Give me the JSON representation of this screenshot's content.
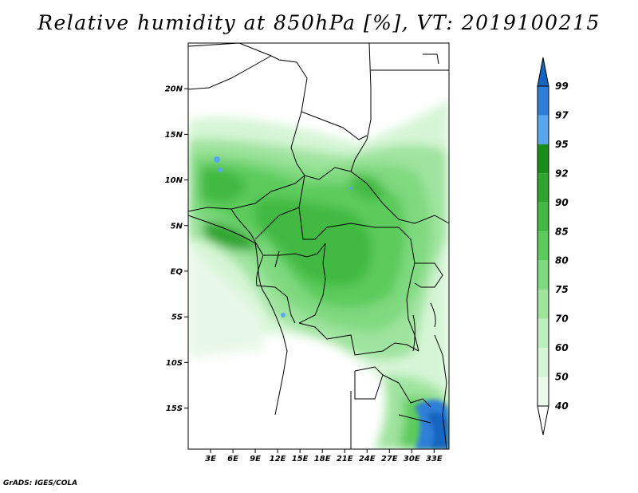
{
  "title": "Relative humidity at 850hPa [%], VT: 2019100215",
  "credit": "GrADS: IGES/COLA",
  "map": {
    "lat_ticks": [
      "20N",
      "15N",
      "10N",
      "5N",
      "EQ",
      "5S",
      "10S",
      "15S"
    ],
    "lon_ticks": [
      "3E",
      "6E",
      "9E",
      "12E",
      "15E",
      "18E",
      "21E",
      "24E",
      "27E",
      "30E",
      "33E"
    ],
    "lat_values": [
      20,
      15,
      10,
      5,
      0,
      -5,
      -10,
      -15
    ],
    "lon_values": [
      3,
      6,
      9,
      12,
      15,
      18,
      21,
      24,
      27,
      30,
      33
    ],
    "lat_range": [
      -19.5,
      25
    ],
    "lon_range": [
      0,
      35
    ]
  },
  "colorbar": {
    "levels": [
      "99",
      "97",
      "95",
      "92",
      "90",
      "85",
      "80",
      "75",
      "70",
      "60",
      "50",
      "40"
    ],
    "colors": [
      "#1565c0",
      "#2f7fd9",
      "#5aa6ee",
      "#1a8c1a",
      "#2fa52f",
      "#43b943",
      "#5ccb5c",
      "#7fd97f",
      "#9ee39e",
      "#bdeebd",
      "#d6f5d6",
      "#ecfaec",
      "#ffffff"
    ]
  }
}
